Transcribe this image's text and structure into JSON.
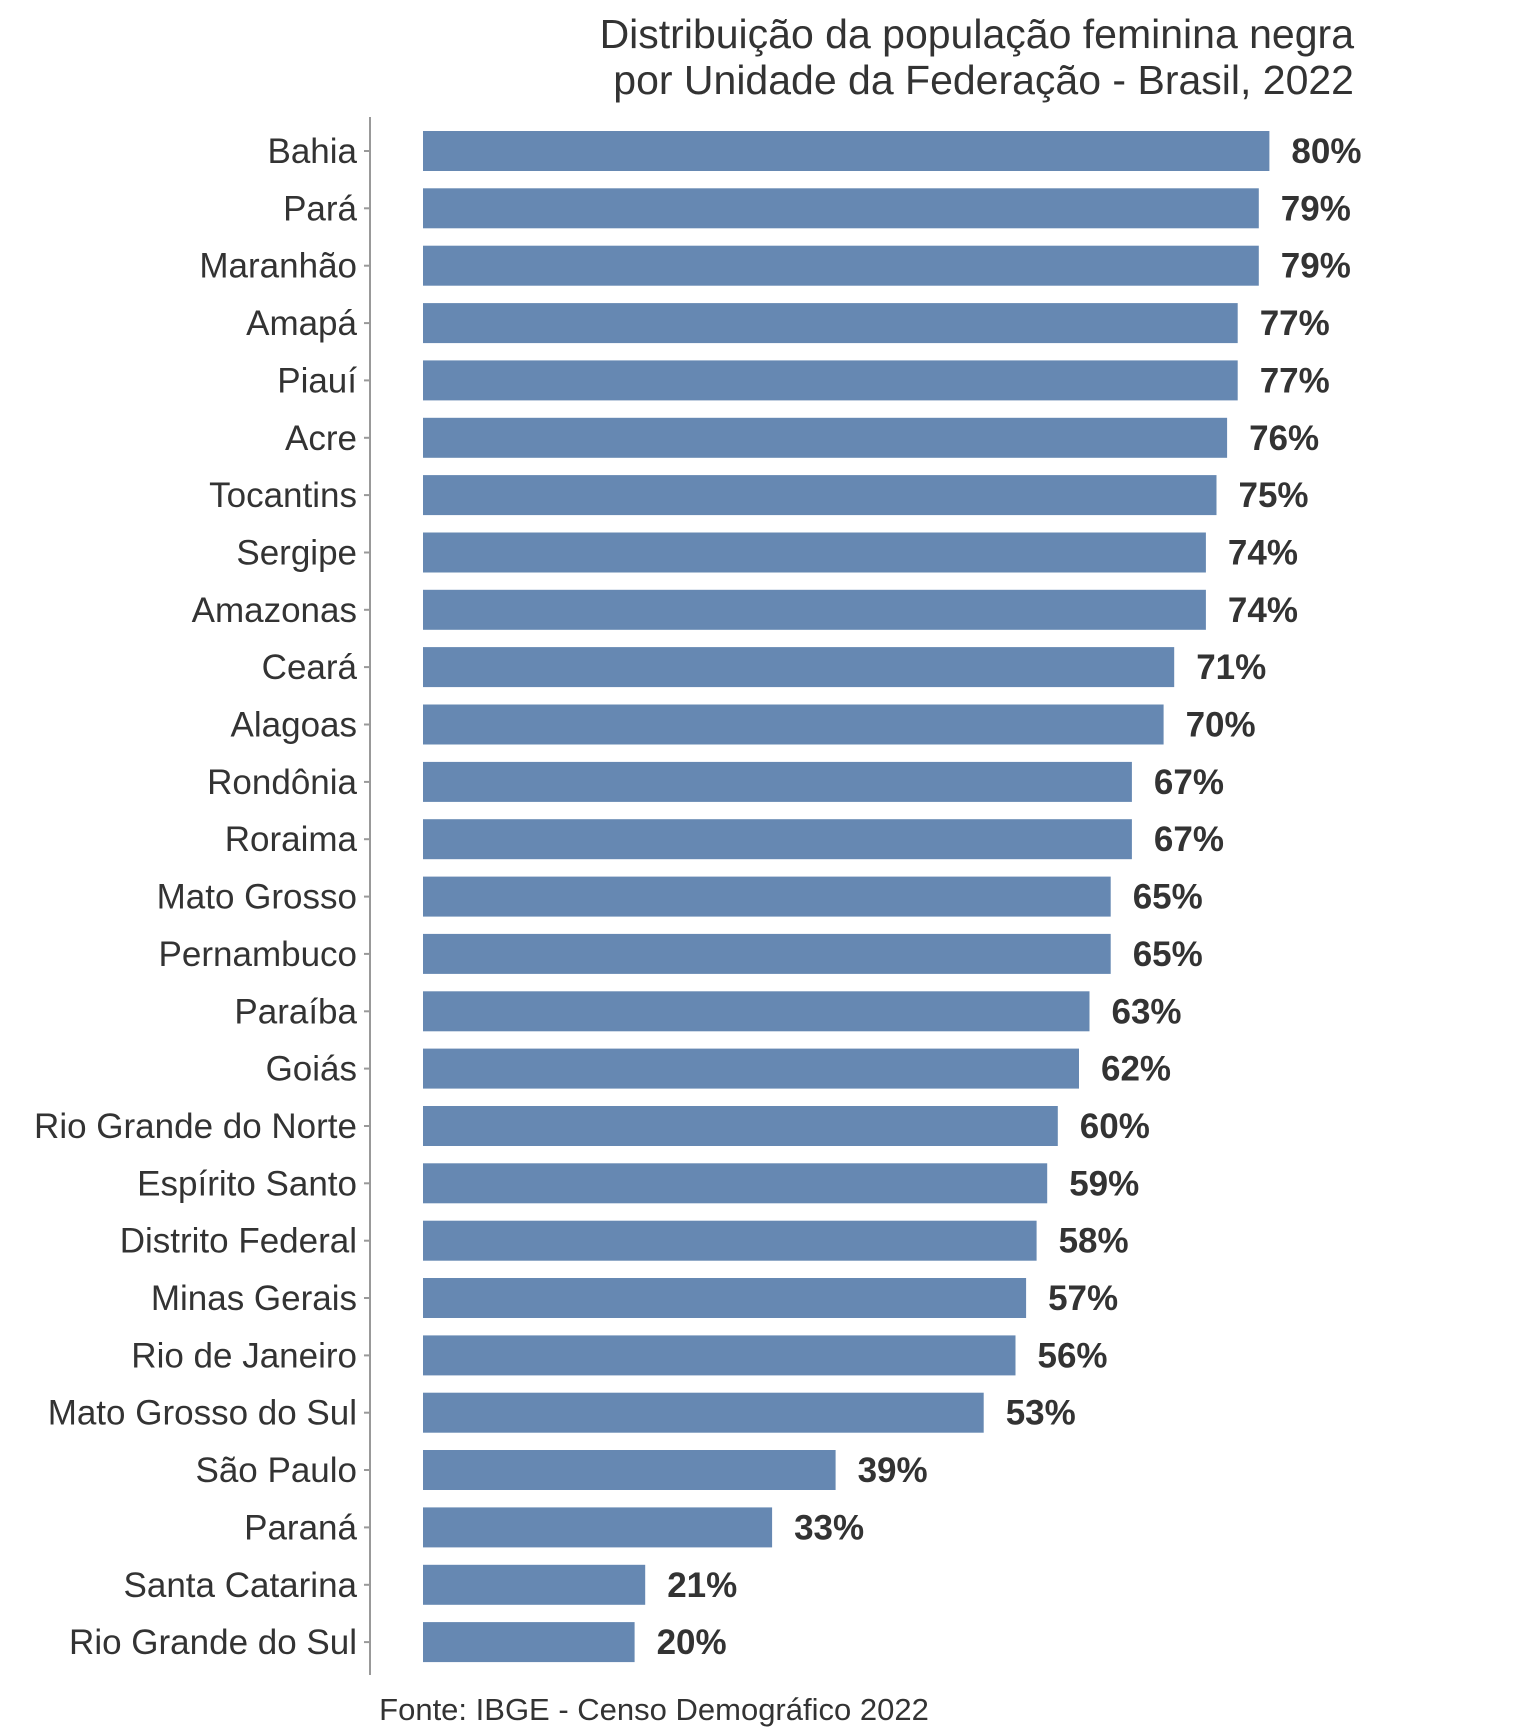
{
  "chart_data": {
    "type": "bar",
    "orientation": "horizontal",
    "title": [
      "Distribuição da população feminina negra",
      "por Unidade da Federação - Brasil, 2022"
    ],
    "categories": [
      "Bahia",
      "Pará",
      "Maranhão",
      "Amapá",
      "Piauí",
      "Acre",
      "Tocantins",
      "Sergipe",
      "Amazonas",
      "Ceará",
      "Alagoas",
      "Rondônia",
      "Roraima",
      "Mato Grosso",
      "Pernambuco",
      "Paraíba",
      "Goiás",
      "Rio Grande do Norte",
      "Espírito Santo",
      "Distrito Federal",
      "Minas Gerais",
      "Rio de Janeiro",
      "Mato Grosso do Sul",
      "São Paulo",
      "Paraná",
      "Santa Catarina",
      "Rio Grande do Sul"
    ],
    "values": [
      80,
      79,
      79,
      77,
      77,
      76,
      75,
      74,
      74,
      71,
      70,
      67,
      67,
      65,
      65,
      63,
      62,
      60,
      59,
      58,
      57,
      56,
      53,
      39,
      33,
      21,
      20
    ],
    "value_labels": [
      "80%",
      "79%",
      "79%",
      "77%",
      "77%",
      "76%",
      "75%",
      "74%",
      "74%",
      "71%",
      "70%",
      "67%",
      "67%",
      "65%",
      "65%",
      "63%",
      "62%",
      "60%",
      "59%",
      "58%",
      "57%",
      "56%",
      "53%",
      "39%",
      "33%",
      "21%",
      "20%"
    ],
    "xlim": [
      0,
      80
    ],
    "grid": false,
    "legend": "none",
    "bar_color": "#6688b2",
    "text_color": "#333333",
    "axis_color": "#999999",
    "source": "Fonte: IBGE - Censo Demográfico 2022"
  }
}
